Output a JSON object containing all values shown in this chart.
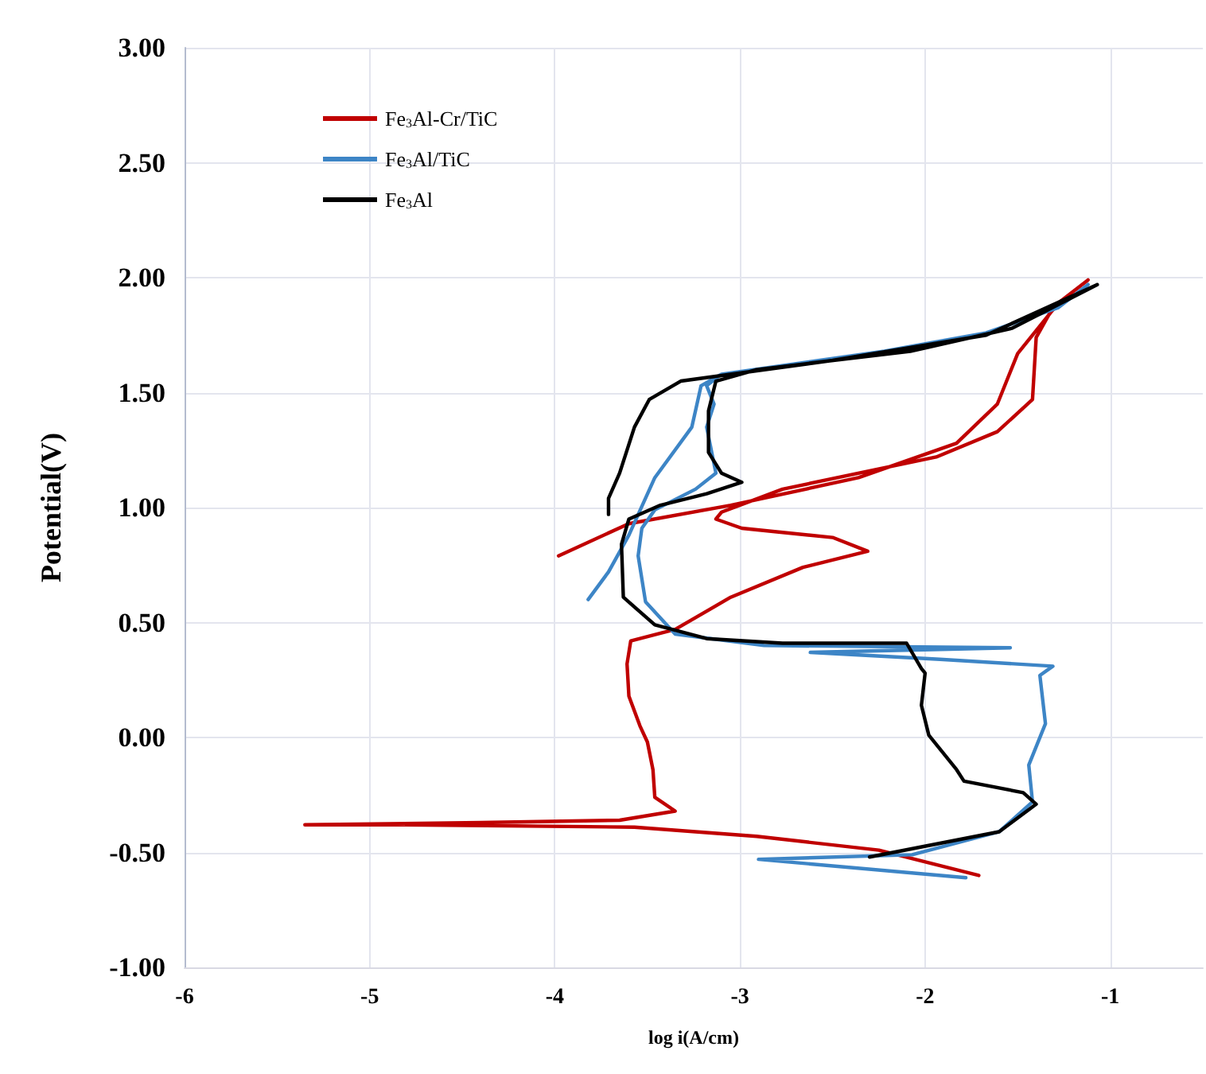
{
  "chart_data": {
    "type": "line",
    "xlabel": "log i(A/cm)",
    "ylabel": "Potential(V)",
    "xlim": [
      -6,
      -0.5
    ],
    "xticks": [
      -6,
      -5,
      -4,
      -3,
      -2,
      -1
    ],
    "ylim": [
      -1,
      3
    ],
    "yticks": [
      {
        "value": -1,
        "label": "-1.00"
      },
      {
        "value": -0.5,
        "label": "-0.50"
      },
      {
        "value": 0,
        "label": "0.00"
      },
      {
        "value": 0.5,
        "label": "0.50"
      },
      {
        "value": 1,
        "label": "1.00"
      },
      {
        "value": 1.5,
        "label": "1.50"
      },
      {
        "value": 2,
        "label": "2.00"
      },
      {
        "value": 2.5,
        "label": "2.50"
      },
      {
        "value": 3,
        "label": "3.00"
      }
    ],
    "grid": true,
    "legend": "top left",
    "marker": "none",
    "line_style": "solid",
    "series": [
      {
        "name": "Fe$_{3}$Al-Cr/TiC",
        "color": "#c00000",
        "x": [
          -1.71,
          -2.25,
          -2.91,
          -3.57,
          -4.81,
          -5.35,
          -4.4,
          -3.65,
          -3.35,
          -3.46,
          -3.47,
          -3.5,
          -3.54,
          -3.6,
          -3.61,
          -3.59,
          -3.35,
          -3.05,
          -2.66,
          -2.31,
          -2.5,
          -2.99,
          -3.13,
          -3.1,
          -2.77,
          -1.94,
          -1.61,
          -1.42,
          -1.4,
          -1.31,
          -1.12,
          -1.28,
          -1.5,
          -1.61,
          -1.83,
          -2.36,
          -3.05,
          -3.6,
          -3.98
        ],
        "values": [
          -0.6,
          -0.49,
          -0.43,
          -0.39,
          -0.38,
          -0.38,
          -0.37,
          -0.36,
          -0.32,
          -0.26,
          -0.14,
          -0.02,
          0.05,
          0.18,
          0.32,
          0.42,
          0.47,
          0.61,
          0.74,
          0.81,
          0.87,
          0.91,
          0.95,
          0.98,
          1.08,
          1.22,
          1.33,
          1.47,
          1.74,
          1.87,
          1.99,
          1.89,
          1.67,
          1.45,
          1.28,
          1.13,
          1.01,
          0.93,
          0.79
        ]
      },
      {
        "name": "Fe$_{3}$Al/TiC",
        "color": "#3d85c6",
        "x": [
          -1.78,
          -2.9,
          -2.07,
          -1.6,
          -1.42,
          -1.44,
          -1.35,
          -1.38,
          -1.31,
          -1.92,
          -2.62,
          -1.54,
          -2.87,
          -3.35,
          -3.51,
          -3.55,
          -3.53,
          -3.46,
          -3.24,
          -3.13,
          -3.18,
          -3.14,
          -3.18,
          -3.1,
          -2.22,
          -1.67,
          -1.28,
          -1.12,
          -1.28,
          -1.67,
          -2.22,
          -3.1,
          -3.21,
          -3.26,
          -3.46,
          -3.6,
          -3.71,
          -3.82
        ],
        "values": [
          -0.61,
          -0.53,
          -0.51,
          -0.41,
          -0.28,
          -0.12,
          0.06,
          0.27,
          0.31,
          0.34,
          0.37,
          0.39,
          0.4,
          0.45,
          0.59,
          0.79,
          0.91,
          0.99,
          1.08,
          1.15,
          1.35,
          1.45,
          1.53,
          1.58,
          1.68,
          1.76,
          1.87,
          1.97,
          1.87,
          1.76,
          1.68,
          1.58,
          1.53,
          1.35,
          1.13,
          0.88,
          0.72,
          0.6
        ]
      },
      {
        "name": "Fe$_{3}$Al",
        "color": "#000000",
        "x": [
          -2.3,
          -1.6,
          -1.4,
          -1.47,
          -1.79,
          -1.83,
          -1.98,
          -2.02,
          -2.0,
          -2.02,
          -2.1,
          -2.77,
          -3.18,
          -3.46,
          -3.63,
          -3.64,
          -3.6,
          -3.43,
          -3.18,
          -2.99,
          -3.1,
          -3.17,
          -3.17,
          -3.13,
          -2.91,
          -2.08,
          -1.53,
          -1.07,
          -1.67,
          -2.5,
          -3.32,
          -3.49,
          -3.57,
          -3.65,
          -3.71,
          -3.71
        ],
        "values": [
          -0.52,
          -0.41,
          -0.29,
          -0.24,
          -0.19,
          -0.14,
          0.01,
          0.14,
          0.28,
          0.3,
          0.41,
          0.41,
          0.43,
          0.49,
          0.61,
          0.84,
          0.95,
          1.01,
          1.06,
          1.11,
          1.15,
          1.24,
          1.42,
          1.55,
          1.6,
          1.68,
          1.78,
          1.97,
          1.75,
          1.64,
          1.55,
          1.47,
          1.35,
          1.15,
          1.04,
          0.97
        ]
      }
    ]
  }
}
